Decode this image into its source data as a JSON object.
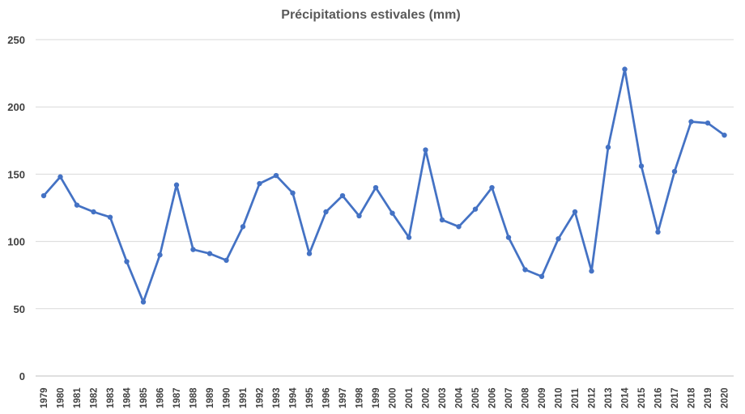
{
  "chart_data": {
    "type": "line",
    "title": "Précipitations estivales (mm)",
    "xlabel": "",
    "ylabel": "",
    "ylim": [
      0,
      250
    ],
    "yticks": [
      0,
      50,
      100,
      150,
      200,
      250
    ],
    "grid": true,
    "legend": "none",
    "color": "#4472C4",
    "categories": [
      "1979",
      "1980",
      "1981",
      "1982",
      "1983",
      "1984",
      "1985",
      "1986",
      "1987",
      "1988",
      "1989",
      "1990",
      "1991",
      "1992",
      "1993",
      "1994",
      "1995",
      "1996",
      "1997",
      "1998",
      "1999",
      "2000",
      "2001",
      "2002",
      "2003",
      "2004",
      "2005",
      "2006",
      "2007",
      "2008",
      "2009",
      "2010",
      "2011",
      "2012",
      "2013",
      "2014",
      "2015",
      "2016",
      "2017",
      "2018",
      "2019",
      "2020"
    ],
    "series": [
      {
        "values": [
          134,
          148,
          127,
          122,
          118,
          85,
          55,
          90,
          142,
          94,
          91,
          86,
          111,
          143,
          149,
          136,
          91,
          122,
          134,
          119,
          140,
          121,
          103,
          168,
          116,
          111,
          124,
          140,
          103,
          79,
          74,
          102,
          122,
          78,
          170,
          228,
          156,
          107,
          152,
          189,
          188,
          179
        ]
      }
    ]
  }
}
